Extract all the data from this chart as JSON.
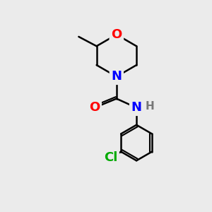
{
  "background_color": "#ebebeb",
  "atom_colors": {
    "O": "#ff0000",
    "N": "#0000ff",
    "Cl": "#00aa00",
    "C": "#000000",
    "H": "#777777"
  },
  "bond_color": "#000000",
  "bond_width": 1.8,
  "font_size_atom": 13,
  "figsize": [
    3.0,
    3.0
  ],
  "dpi": 100
}
